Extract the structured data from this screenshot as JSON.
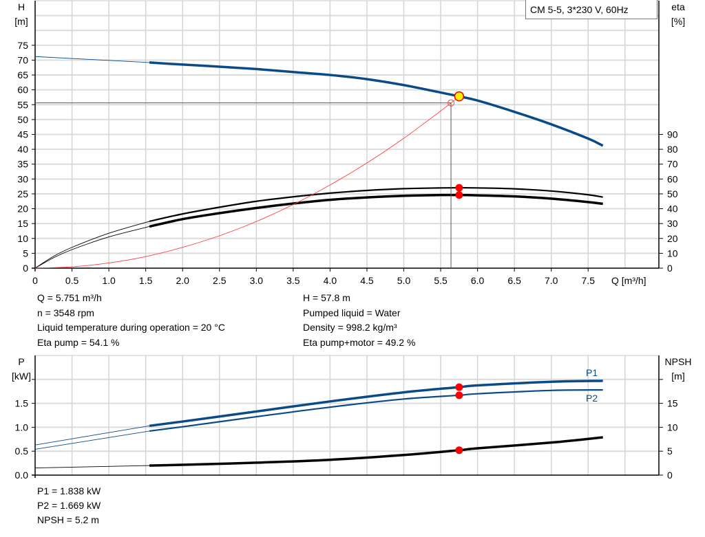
{
  "chart_data": [
    {
      "type": "line",
      "title": "CM 5-5, 3*230 V, 60Hz",
      "xlabel": "Q [m³/h]",
      "ylabel": "H\n[m]",
      "ylabel_parts": [
        "H",
        "[m]"
      ],
      "y2label_parts": [
        "eta",
        "[%]"
      ],
      "xlim": [
        0,
        8.46
      ],
      "ylim": [
        0,
        90
      ],
      "y2lim": [
        0,
        180
      ],
      "grid": true,
      "xticks": [
        "0",
        "0.5",
        "1.0",
        "1.5",
        "2.0",
        "2.5",
        "3.0",
        "3.5",
        "4.0",
        "4.5",
        "5.0",
        "5.5",
        "6.0",
        "6.5",
        "7.0",
        "7.5"
      ],
      "yticks": [
        0,
        5,
        10,
        15,
        20,
        25,
        30,
        35,
        40,
        45,
        50,
        55,
        60,
        65,
        70,
        75
      ],
      "y2ticks": [
        0,
        10,
        20,
        30,
        40,
        50,
        60,
        70,
        80,
        90
      ],
      "series": [
        {
          "key": "H",
          "axis": "y",
          "color": "#0a4a86",
          "thin_until": 1.55,
          "x": [
            0,
            1.55,
            2,
            2.5,
            3,
            3.5,
            4,
            4.5,
            5,
            5.5,
            5.751,
            6,
            6.5,
            7,
            7.5,
            7.7
          ],
          "y": [
            71.2,
            69.2,
            68.5,
            67.8,
            67,
            66,
            65,
            63.6,
            61.6,
            59.1,
            57.8,
            56.4,
            52.6,
            48.4,
            43.6,
            41.2
          ]
        },
        {
          "key": "eta_pump",
          "axis": "y2",
          "color": "#000000",
          "thin_until": 1.55,
          "x": [
            0,
            0.25,
            0.5,
            1.0,
            1.55,
            2,
            2.5,
            3,
            3.5,
            4,
            4.5,
            5,
            5.5,
            5.751,
            6,
            6.5,
            7,
            7.5,
            7.7
          ],
          "y": [
            0,
            8,
            14,
            23.5,
            31.5,
            36.5,
            41,
            45,
            48,
            50.5,
            52.3,
            53.5,
            54,
            54.1,
            54,
            53.4,
            51.9,
            49.4,
            47.8
          ]
        },
        {
          "key": "eta_pump_motor",
          "axis": "y2",
          "color": "#000000",
          "thin_until": 1.55,
          "x": [
            0,
            0.25,
            0.5,
            1.0,
            1.55,
            2,
            2.5,
            3,
            3.5,
            4,
            4.5,
            5,
            5.5,
            5.751,
            6,
            6.5,
            7,
            7.5,
            7.7
          ],
          "y": [
            0,
            7,
            12.5,
            21,
            28,
            33,
            37,
            40.5,
            43.5,
            46,
            47.6,
            48.7,
            49.2,
            49.2,
            49,
            48.3,
            46.8,
            44.5,
            43.3
          ]
        },
        {
          "key": "system",
          "axis": "y",
          "color": "#ff3b3b",
          "x": [
            0,
            0.5,
            1,
            1.5,
            2,
            2.5,
            3,
            3.5,
            4,
            4.5,
            5,
            5.5,
            5.64,
            5.751
          ],
          "y": [
            0,
            0.44,
            1.75,
            3.9,
            7,
            10.9,
            15.7,
            21.4,
            28,
            35.4,
            43.7,
            52.9,
            55.6,
            57.8
          ]
        }
      ],
      "duty_point": {
        "q": 5.751,
        "h": 57.8,
        "eta_pump": 54.1,
        "eta_pump_motor": 49.2
      },
      "required_point": {
        "q": 5.64,
        "h": 55.6
      }
    },
    {
      "type": "line",
      "xlim": [
        0,
        8.46
      ],
      "ylabel_parts": [
        "P",
        "[kW]"
      ],
      "y2label_parts": [
        "NPSH",
        "[m]"
      ],
      "ylim": [
        0,
        2.5
      ],
      "y2lim": [
        0,
        25
      ],
      "grid": true,
      "yticks": [
        "0.0",
        "0.5",
        "1.0",
        "1.5",
        ""
      ],
      "y2ticks": [
        "0",
        "5",
        "10",
        "15",
        ""
      ],
      "series": [
        {
          "key": "P1",
          "name": "P1",
          "axis": "y",
          "color": "#0a4a86",
          "thin_until": 1.55,
          "x": [
            0,
            1.55,
            2,
            3,
            4,
            5,
            5.751,
            6,
            7,
            7.7
          ],
          "y": [
            0.63,
            1.03,
            1.12,
            1.33,
            1.54,
            1.73,
            1.838,
            1.875,
            1.95,
            1.97
          ]
        },
        {
          "key": "P2",
          "name": "P2",
          "axis": "y",
          "color": "#0a4a86",
          "thin_until": 1.55,
          "x": [
            0,
            1.55,
            2,
            3,
            4,
            5,
            5.751,
            6,
            7,
            7.7
          ],
          "y": [
            0.54,
            0.92,
            1.01,
            1.22,
            1.42,
            1.59,
            1.669,
            1.7,
            1.77,
            1.78
          ]
        },
        {
          "key": "NPSH",
          "axis": "y2",
          "color": "#000000",
          "thin_until": 1.55,
          "x": [
            0,
            1.55,
            2,
            3,
            4,
            5,
            5.751,
            6,
            7,
            7.7
          ],
          "y": [
            1.5,
            2.0,
            2.15,
            2.6,
            3.2,
            4.2,
            5.2,
            5.6,
            6.8,
            7.9
          ]
        }
      ],
      "duty_point": {
        "q": 5.751,
        "P1": 1.838,
        "P2": 1.669,
        "NPSH": 5.2
      }
    }
  ],
  "info_top_left": [
    "Q = 5.751 m³/h",
    "n = 3548 rpm",
    "Liquid temperature during operation = 20 °C",
    "Eta pump = 54.1 %"
  ],
  "info_top_right": [
    "H = 57.8 m",
    "Pumped liquid = Water",
    "Density = 998.2 kg/m³",
    "Eta pump+motor = 49.2 %"
  ],
  "info_bottom": [
    "P1 = 1.838 kW",
    "P2 = 1.669 kW",
    "NPSH = 5.2 m"
  ],
  "colors": {
    "curve_blue": "#0a4a86",
    "marker_red": "#ff0000",
    "duty_yellow": "#ffee00",
    "grid": "#dcdcdc"
  }
}
